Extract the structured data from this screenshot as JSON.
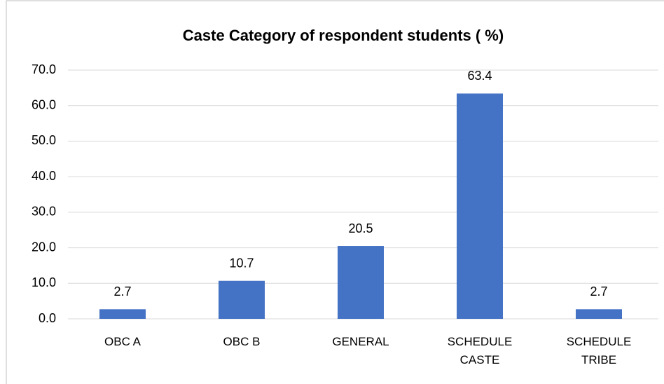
{
  "chart_data": {
    "type": "bar",
    "title": "Caste Category of respondent students ( %)",
    "categories": [
      "OBC A",
      "OBC B",
      "GENERAL",
      "SCHEDULE CASTE",
      "SCHEDULE TRIBE"
    ],
    "values": [
      2.7,
      10.7,
      20.5,
      63.4,
      2.7
    ],
    "color": "#4472c4",
    "ylim": [
      0,
      70
    ],
    "yticks": [
      {
        "value": 0,
        "label": "0.0"
      },
      {
        "value": 10,
        "label": "10.0"
      },
      {
        "value": 20,
        "label": "20.0"
      },
      {
        "value": 30,
        "label": "30.0"
      },
      {
        "value": 40,
        "label": "40.0"
      },
      {
        "value": 50,
        "label": "50.0"
      },
      {
        "value": 60,
        "label": "60.0"
      },
      {
        "value": 70,
        "label": "70.0"
      }
    ],
    "grid": true
  }
}
